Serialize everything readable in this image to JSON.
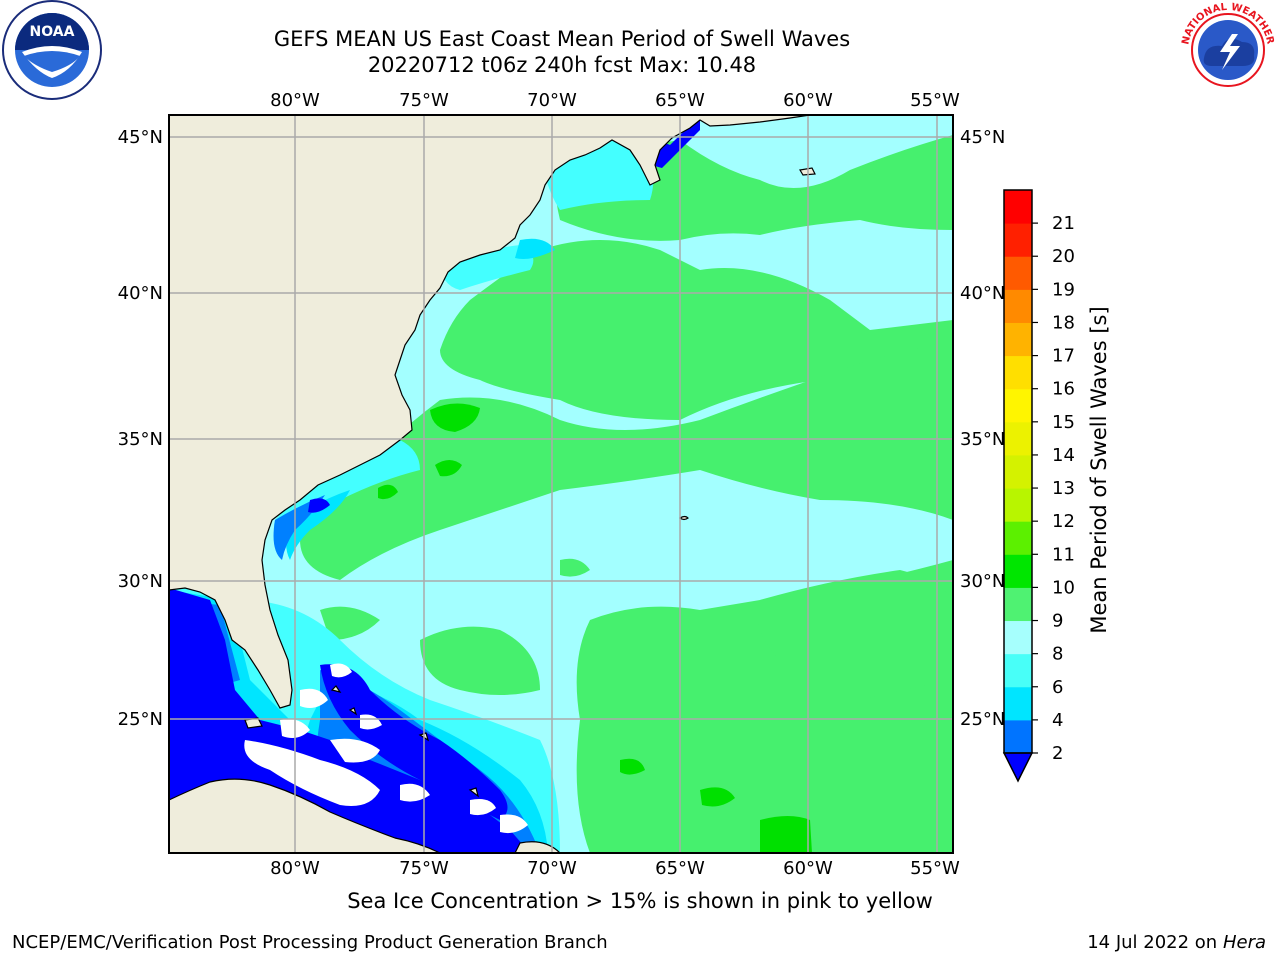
{
  "header": {
    "title_line1": "GEFS MEAN US East Coast Mean Period of Swell Waves",
    "title_line2": "20220712 t06z 240h fcst   Max: 10.48"
  },
  "map": {
    "lon_labels": [
      "80°W",
      "75°W",
      "70°W",
      "65°W",
      "60°W",
      "55°W"
    ],
    "lat_labels": [
      "45°N",
      "40°N",
      "35°N",
      "30°N",
      "25°N"
    ],
    "colors": {
      "land": "#efeddc",
      "deep_blue": "#0000ff",
      "blue": "#0080ff",
      "cyan": "#00e5ff",
      "light_cyan": "#44ffff",
      "pale_cyan": "#a3ffff",
      "green": "#46f06e",
      "bright_green": "#00e000",
      "grid": "#aaaaaa"
    }
  },
  "colorbar": {
    "label": "Mean Period of Swell Waves [s]",
    "ticks": [
      "2",
      "4",
      "6",
      "8",
      "9",
      "10",
      "11",
      "12",
      "13",
      "14",
      "15",
      "16",
      "17",
      "18",
      "19",
      "20",
      "21"
    ],
    "colors": [
      "#0074ff",
      "#00e5ff",
      "#48fff8",
      "#a6fffd",
      "#4ff272",
      "#00e600",
      "#5cf000",
      "#b8f500",
      "#d4f200",
      "#ecf200",
      "#fff500",
      "#ffdf00",
      "#ffb300",
      "#ff8a00",
      "#ff5a00",
      "#ff2000",
      "#ff0000"
    ],
    "extend_color": "#0000ff"
  },
  "footer": {
    "note": "Sea Ice Concentration > 15% is shown in pink to yellow",
    "credit": "NCEP/EMC/Verification Post Processing Product Generation Branch",
    "date": "14 Jul 2022 on",
    "host": "Hera"
  },
  "logos": {
    "noaa_text": "NOAA",
    "nws_text": "NATIONAL WEATHER SERVICE"
  }
}
